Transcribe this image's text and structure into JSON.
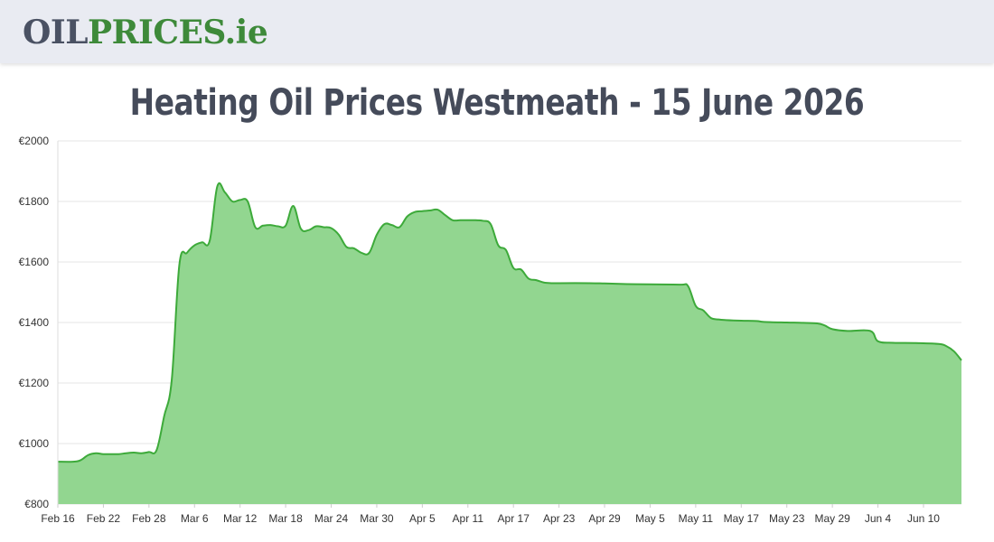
{
  "header": {
    "logo_part1": "OIL",
    "logo_part2": "PRICES.ie"
  },
  "page_title": "Heating Oil Prices Westmeath - 15 June 2026",
  "colors": {
    "header_bg": "#e9ebf2",
    "area_fill": "#92d690",
    "line": "#3daa3a",
    "grid": "#e5e5e5",
    "title": "#454b5a"
  },
  "chart_data": {
    "type": "area",
    "title": "",
    "xlabel": "",
    "ylabel": "",
    "ylim": [
      800,
      2000
    ],
    "y_ticks": [
      800,
      1000,
      1200,
      1400,
      1600,
      1800,
      2000
    ],
    "y_tick_labels": [
      "€800",
      "€1000",
      "€1200",
      "€1400",
      "€1600",
      "€1800",
      "€2000"
    ],
    "x_tick_labels": [
      "Feb 16",
      "Feb 22",
      "Feb 28",
      "Mar 6",
      "Mar 12",
      "Mar 18",
      "Mar 24",
      "Mar 30",
      "Apr 5",
      "Apr 11",
      "Apr 17",
      "Apr 23",
      "Apr 29",
      "May 5",
      "May 11",
      "May 17",
      "May 23",
      "May 29",
      "Jun 4",
      "Jun 10"
    ],
    "x_tick_days": [
      0,
      6,
      12,
      18,
      24,
      30,
      36,
      42,
      48,
      54,
      60,
      66,
      72,
      78,
      84,
      90,
      96,
      102,
      108,
      114
    ],
    "x_day_range": [
      0,
      119
    ],
    "grid": true,
    "legend": "none",
    "series": [
      {
        "values": [
          [
            0,
            940
          ],
          [
            2,
            940
          ],
          [
            3,
            945
          ],
          [
            4,
            962
          ],
          [
            5,
            968
          ],
          [
            6,
            965
          ],
          [
            7,
            965
          ],
          [
            8,
            965
          ],
          [
            9,
            968
          ],
          [
            10,
            970
          ],
          [
            11,
            968
          ],
          [
            12,
            972
          ],
          [
            13,
            978
          ],
          [
            14,
            1090
          ],
          [
            15,
            1210
          ],
          [
            16,
            1590
          ],
          [
            17,
            1630
          ],
          [
            18,
            1655
          ],
          [
            19,
            1665
          ],
          [
            20,
            1670
          ],
          [
            21,
            1850
          ],
          [
            22,
            1830
          ],
          [
            23,
            1800
          ],
          [
            24,
            1805
          ],
          [
            25,
            1800
          ],
          [
            26,
            1715
          ],
          [
            27,
            1720
          ],
          [
            28,
            1722
          ],
          [
            29,
            1718
          ],
          [
            30,
            1720
          ],
          [
            31,
            1785
          ],
          [
            32,
            1710
          ],
          [
            33,
            1705
          ],
          [
            34,
            1718
          ],
          [
            35,
            1715
          ],
          [
            36,
            1712
          ],
          [
            37,
            1690
          ],
          [
            38,
            1650
          ],
          [
            39,
            1645
          ],
          [
            40,
            1630
          ],
          [
            41,
            1630
          ],
          [
            42,
            1690
          ],
          [
            43,
            1725
          ],
          [
            44,
            1722
          ],
          [
            45,
            1715
          ],
          [
            46,
            1750
          ],
          [
            47,
            1765
          ],
          [
            48,
            1768
          ],
          [
            49,
            1770
          ],
          [
            50,
            1773
          ],
          [
            51,
            1755
          ],
          [
            52,
            1738
          ],
          [
            53,
            1738
          ],
          [
            54,
            1738
          ],
          [
            55,
            1738
          ],
          [
            56,
            1736
          ],
          [
            57,
            1725
          ],
          [
            58,
            1655
          ],
          [
            59,
            1640
          ],
          [
            60,
            1580
          ],
          [
            61,
            1575
          ],
          [
            62,
            1545
          ],
          [
            63,
            1540
          ],
          [
            64,
            1532
          ],
          [
            65,
            1530
          ],
          [
            66,
            1530
          ],
          [
            70,
            1530
          ],
          [
            72,
            1529
          ],
          [
            75,
            1527
          ],
          [
            78,
            1526
          ],
          [
            82,
            1525
          ],
          [
            83,
            1520
          ],
          [
            84,
            1455
          ],
          [
            85,
            1440
          ],
          [
            86,
            1415
          ],
          [
            87,
            1410
          ],
          [
            88,
            1408
          ],
          [
            90,
            1406
          ],
          [
            92,
            1405
          ],
          [
            93,
            1402
          ],
          [
            96,
            1400
          ],
          [
            98,
            1399
          ],
          [
            100,
            1397
          ],
          [
            101,
            1390
          ],
          [
            102,
            1378
          ],
          [
            104,
            1372
          ],
          [
            107,
            1372
          ],
          [
            108,
            1338
          ],
          [
            110,
            1333
          ],
          [
            113,
            1332
          ],
          [
            116,
            1329
          ],
          [
            117,
            1322
          ],
          [
            118,
            1305
          ],
          [
            119,
            1275
          ]
        ]
      }
    ]
  }
}
